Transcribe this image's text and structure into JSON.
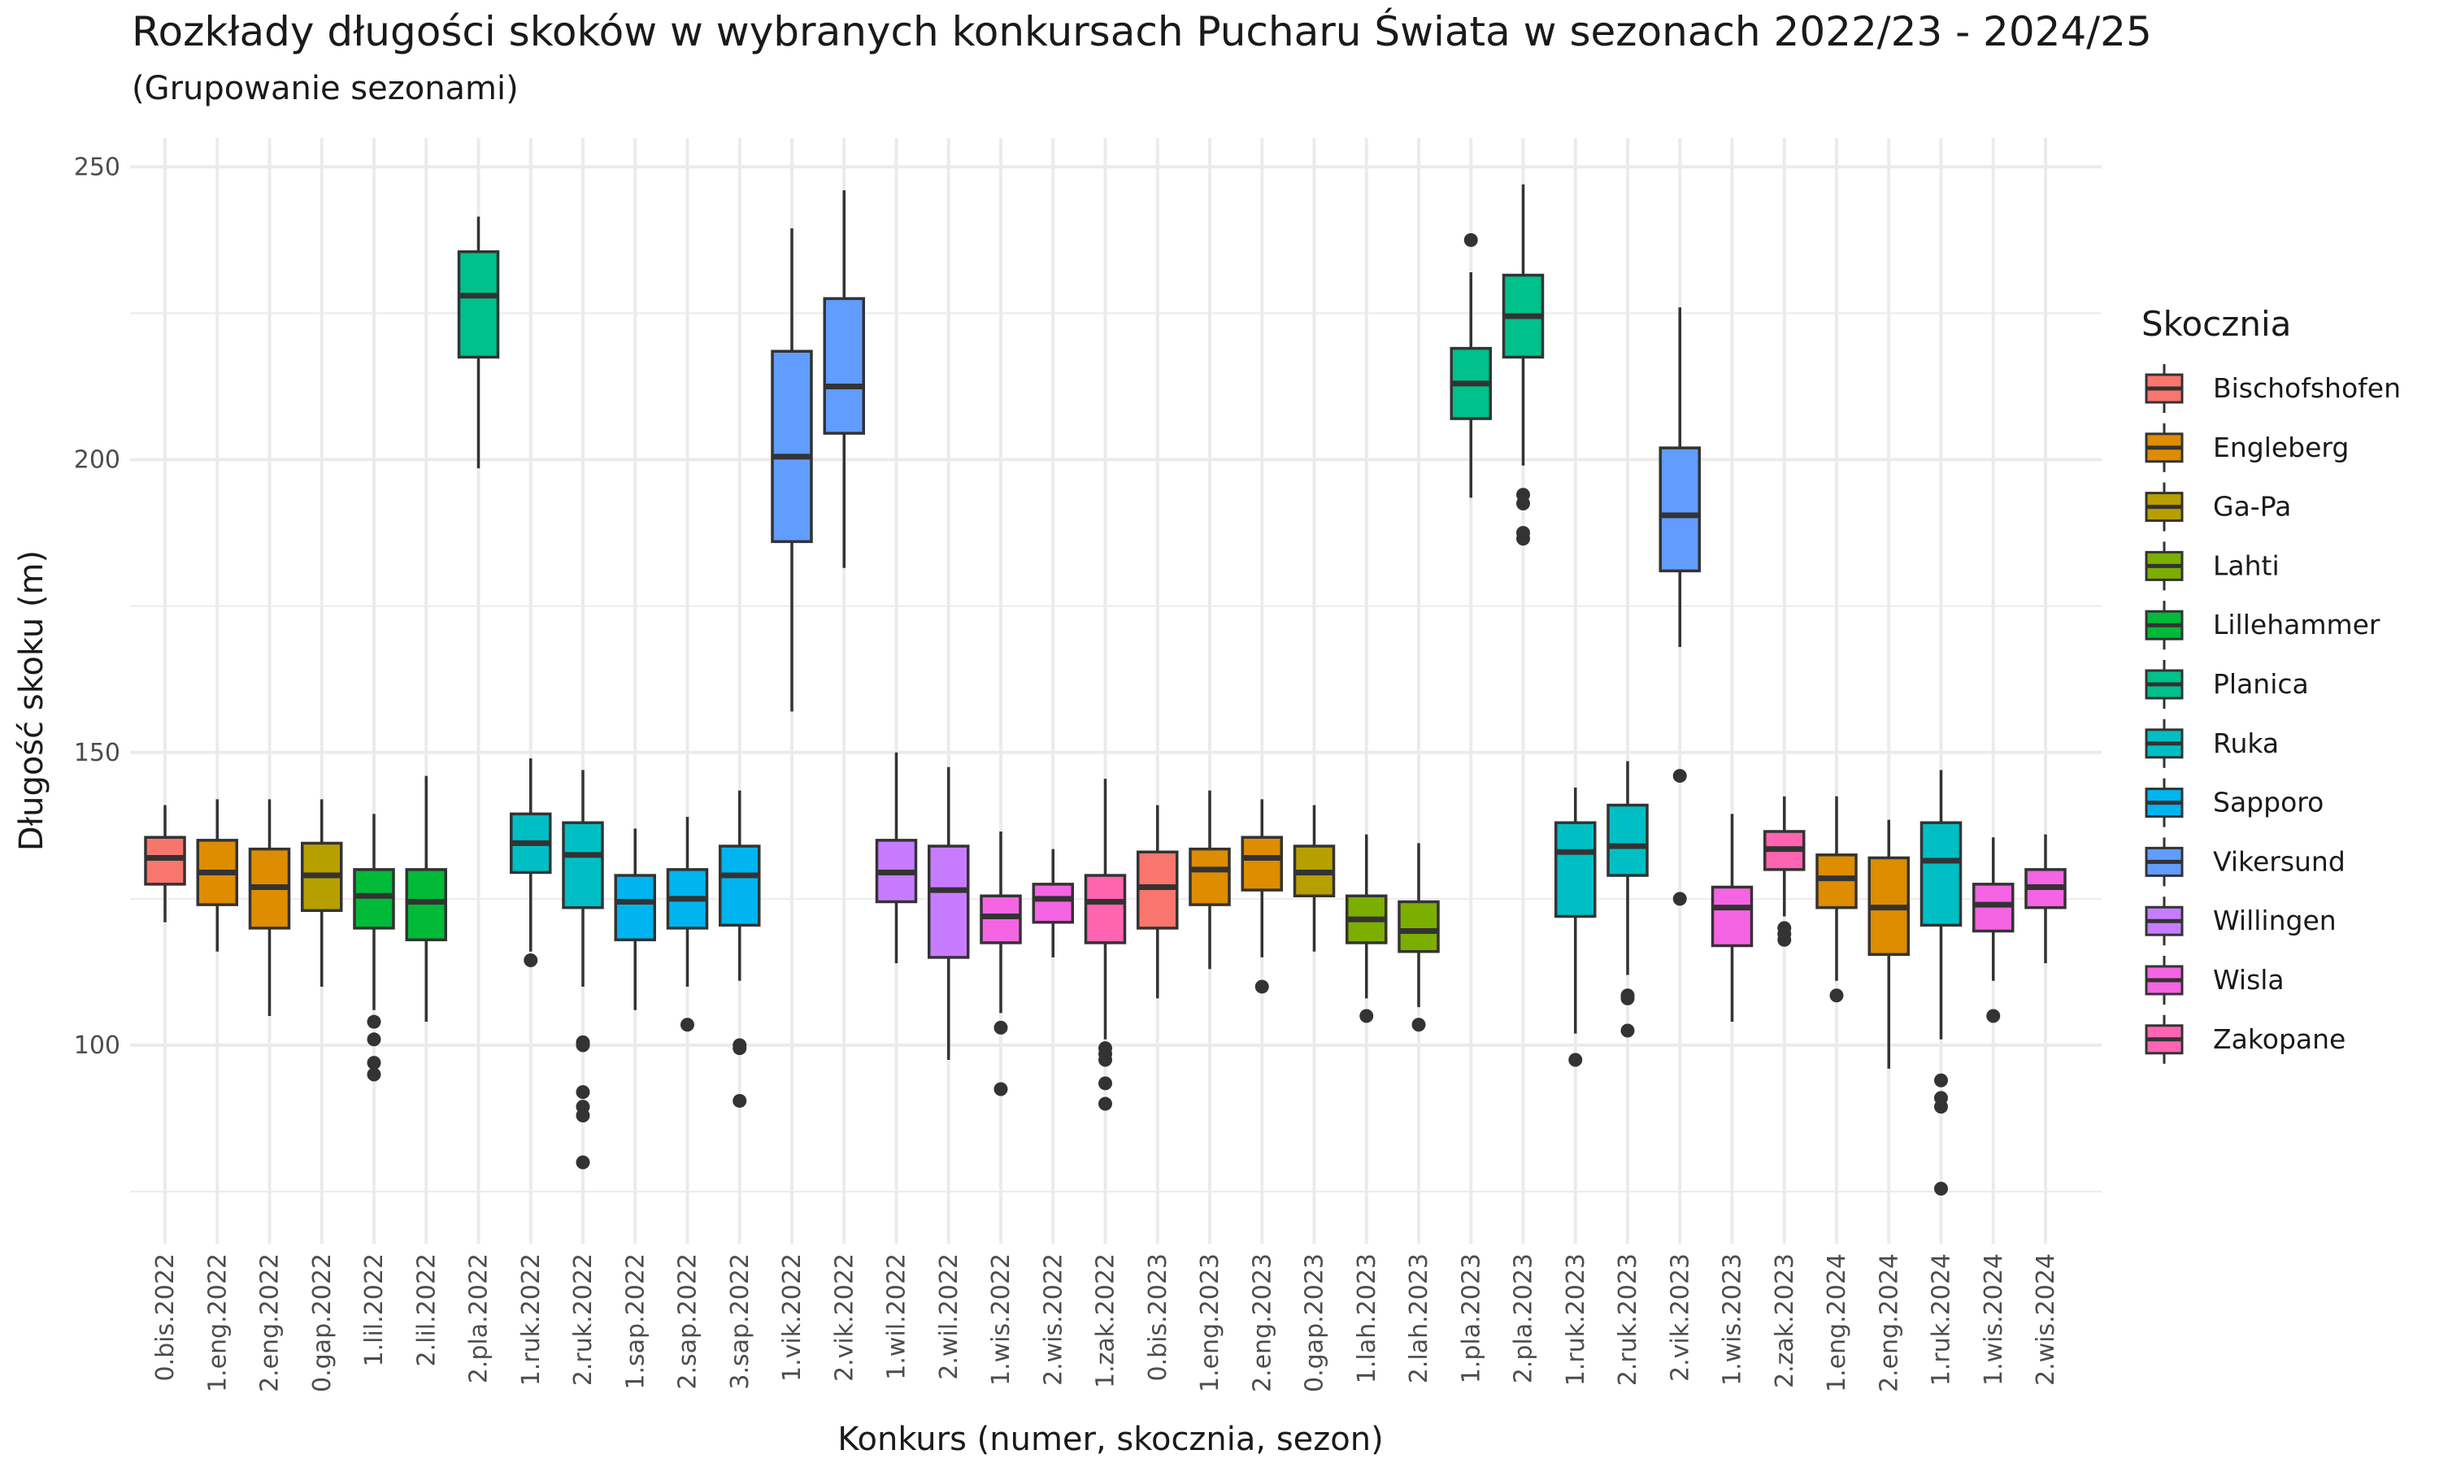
{
  "chart_data": {
    "type": "box",
    "title": "Rozkłady długości skoków w wybranych konkursach Pucharu Świata w sezonach 2022/23 - 2024/25",
    "subtitle": "(Grupowanie sezonami)",
    "xlabel": "Konkurs (numer, skocznia, sezon)",
    "ylabel": "Długość skoku (m)",
    "ylim": [
      72,
      255
    ],
    "yticks": [
      100,
      150,
      200,
      250
    ],
    "grid": true,
    "legend": {
      "title": "Skocznia",
      "position": "right",
      "entries": [
        {
          "name": "Bischofshofen",
          "color": "#F8766D"
        },
        {
          "name": "Engleberg",
          "color": "#DE8C00"
        },
        {
          "name": "Ga-Pa",
          "color": "#B79F00"
        },
        {
          "name": "Lahti",
          "color": "#7CAE00"
        },
        {
          "name": "Lillehammer",
          "color": "#00BA38"
        },
        {
          "name": "Planica",
          "color": "#00C08B"
        },
        {
          "name": "Ruka",
          "color": "#00BFC4"
        },
        {
          "name": "Sapporo",
          "color": "#00B4F0"
        },
        {
          "name": "Vikersund",
          "color": "#619CFF"
        },
        {
          "name": "Willingen",
          "color": "#C77CFF"
        },
        {
          "name": "Wisla",
          "color": "#F564E3"
        },
        {
          "name": "Zakopane",
          "color": "#FF64B0"
        }
      ]
    },
    "boxes": [
      {
        "label": "0.bis.2022",
        "hill": "Bischofshofen",
        "whisker_low": 121,
        "q1": 127.5,
        "median": 132,
        "q3": 135.5,
        "whisker_high": 141,
        "outliers": []
      },
      {
        "label": "1.eng.2022",
        "hill": "Engleberg",
        "whisker_low": 116,
        "q1": 124,
        "median": 129.5,
        "q3": 135,
        "whisker_high": 142,
        "outliers": []
      },
      {
        "label": "2.eng.2022",
        "hill": "Engleberg",
        "whisker_low": 105,
        "q1": 120,
        "median": 127,
        "q3": 133.5,
        "whisker_high": 142,
        "outliers": []
      },
      {
        "label": "0.gap.2022",
        "hill": "Ga-Pa",
        "whisker_low": 110,
        "q1": 123,
        "median": 129,
        "q3": 134.5,
        "whisker_high": 142,
        "outliers": []
      },
      {
        "label": "1.lil.2022",
        "hill": "Lillehammer",
        "whisker_low": 106,
        "q1": 120,
        "median": 125.5,
        "q3": 130,
        "whisker_high": 139.5,
        "outliers": [
          104,
          101,
          97,
          95
        ]
      },
      {
        "label": "2.lil.2022",
        "hill": "Lillehammer",
        "whisker_low": 104,
        "q1": 118,
        "median": 124.5,
        "q3": 130,
        "whisker_high": 146,
        "outliers": []
      },
      {
        "label": "2.pla.2022",
        "hill": "Planica",
        "whisker_low": 198.5,
        "q1": 217.5,
        "median": 228,
        "q3": 235.5,
        "whisker_high": 241.5,
        "outliers": []
      },
      {
        "label": "1.ruk.2022",
        "hill": "Ruka",
        "whisker_low": 116,
        "q1": 129.5,
        "median": 134.5,
        "q3": 139.5,
        "whisker_high": 149,
        "outliers": [
          114.5
        ]
      },
      {
        "label": "2.ruk.2022",
        "hill": "Ruka",
        "whisker_low": 110,
        "q1": 123.5,
        "median": 132.5,
        "q3": 138,
        "whisker_high": 147,
        "outliers": [
          100.5,
          100,
          92,
          89.5,
          88,
          80
        ]
      },
      {
        "label": "1.sap.2022",
        "hill": "Sapporo",
        "whisker_low": 106,
        "q1": 118,
        "median": 124.5,
        "q3": 129,
        "whisker_high": 137,
        "outliers": []
      },
      {
        "label": "2.sap.2022",
        "hill": "Sapporo",
        "whisker_low": 110,
        "q1": 120,
        "median": 125,
        "q3": 130,
        "whisker_high": 139,
        "outliers": [
          103.5
        ]
      },
      {
        "label": "3.sap.2022",
        "hill": "Sapporo",
        "whisker_low": 111,
        "q1": 120.5,
        "median": 129,
        "q3": 134,
        "whisker_high": 143.5,
        "outliers": [
          100,
          99.5,
          90.5
        ]
      },
      {
        "label": "1.vik.2022",
        "hill": "Vikersund",
        "whisker_low": 157,
        "q1": 186,
        "median": 200.5,
        "q3": 218.5,
        "whisker_high": 239.5,
        "outliers": []
      },
      {
        "label": "2.vik.2022",
        "hill": "Vikersund",
        "whisker_low": 181.5,
        "q1": 204.5,
        "median": 212.5,
        "q3": 227.5,
        "whisker_high": 246,
        "outliers": []
      },
      {
        "label": "1.wil.2022",
        "hill": "Willingen",
        "whisker_low": 114,
        "q1": 124.5,
        "median": 129.5,
        "q3": 135,
        "whisker_high": 150,
        "outliers": []
      },
      {
        "label": "2.wil.2022",
        "hill": "Willingen",
        "whisker_low": 97.5,
        "q1": 115,
        "median": 126.5,
        "q3": 134,
        "whisker_high": 147.5,
        "outliers": []
      },
      {
        "label": "1.wis.2022",
        "hill": "Wisla",
        "whisker_low": 105.5,
        "q1": 117.5,
        "median": 122,
        "q3": 125.5,
        "whisker_high": 136.5,
        "outliers": [
          103,
          92.5
        ]
      },
      {
        "label": "2.wis.2022",
        "hill": "Wisla",
        "whisker_low": 115,
        "q1": 121,
        "median": 125,
        "q3": 127.5,
        "whisker_high": 133.5,
        "outliers": []
      },
      {
        "label": "1.zak.2022",
        "hill": "Zakopane",
        "whisker_low": 101,
        "q1": 117.5,
        "median": 124.5,
        "q3": 129,
        "whisker_high": 145.5,
        "outliers": [
          99.5,
          98.5,
          97.5,
          93.5,
          90
        ]
      },
      {
        "label": "0.bis.2023",
        "hill": "Bischofshofen",
        "whisker_low": 108,
        "q1": 120,
        "median": 127,
        "q3": 133,
        "whisker_high": 141,
        "outliers": []
      },
      {
        "label": "1.eng.2023",
        "hill": "Engleberg",
        "whisker_low": 113,
        "q1": 124,
        "median": 130,
        "q3": 133.5,
        "whisker_high": 143.5,
        "outliers": []
      },
      {
        "label": "2.eng.2023",
        "hill": "Engleberg",
        "whisker_low": 115,
        "q1": 126.5,
        "median": 132,
        "q3": 135.5,
        "whisker_high": 142,
        "outliers": [
          110
        ]
      },
      {
        "label": "0.gap.2023",
        "hill": "Ga-Pa",
        "whisker_low": 116,
        "q1": 125.5,
        "median": 129.5,
        "q3": 134,
        "whisker_high": 141,
        "outliers": []
      },
      {
        "label": "1.lah.2023",
        "hill": "Lahti",
        "whisker_low": 108,
        "q1": 117.5,
        "median": 121.5,
        "q3": 125.5,
        "whisker_high": 136,
        "outliers": [
          105
        ]
      },
      {
        "label": "2.lah.2023",
        "hill": "Lahti",
        "whisker_low": 106.5,
        "q1": 116,
        "median": 119.5,
        "q3": 124.5,
        "whisker_high": 134.5,
        "outliers": [
          103.5
        ]
      },
      {
        "label": "1.pla.2023",
        "hill": "Planica",
        "whisker_low": 193.5,
        "q1": 207,
        "median": 213,
        "q3": 219,
        "whisker_high": 232,
        "outliers": [
          237.5
        ]
      },
      {
        "label": "2.pla.2023",
        "hill": "Planica",
        "whisker_low": 199,
        "q1": 217.5,
        "median": 224.5,
        "q3": 231.5,
        "whisker_high": 247,
        "outliers": [
          194,
          192.5,
          187.5,
          186.5
        ]
      },
      {
        "label": "1.ruk.2023",
        "hill": "Ruka",
        "whisker_low": 102,
        "q1": 122,
        "median": 133,
        "q3": 138,
        "whisker_high": 144,
        "outliers": [
          97.5
        ]
      },
      {
        "label": "2.ruk.2023",
        "hill": "Ruka",
        "whisker_low": 112,
        "q1": 129,
        "median": 134,
        "q3": 141,
        "whisker_high": 148.5,
        "outliers": [
          108.5,
          108,
          102.5
        ]
      },
      {
        "label": "2.vik.2023",
        "hill": "Vikersund",
        "whisker_low": 168,
        "q1": 181,
        "median": 190.5,
        "q3": 202,
        "whisker_high": 226,
        "outliers": [
          146,
          125
        ]
      },
      {
        "label": "1.wis.2023",
        "hill": "Wisla",
        "whisker_low": 104,
        "q1": 117,
        "median": 123.5,
        "q3": 127,
        "whisker_high": 139.5,
        "outliers": []
      },
      {
        "label": "2.zak.2023",
        "hill": "Zakopane",
        "whisker_low": 122,
        "q1": 130,
        "median": 133.5,
        "q3": 136.5,
        "whisker_high": 142.5,
        "outliers": [
          120,
          119,
          118
        ]
      },
      {
        "label": "1.eng.2024",
        "hill": "Engleberg",
        "whisker_low": 111,
        "q1": 123.5,
        "median": 128.5,
        "q3": 132.5,
        "whisker_high": 142.5,
        "outliers": [
          108.5
        ]
      },
      {
        "label": "2.eng.2024",
        "hill": "Engleberg",
        "whisker_low": 96,
        "q1": 115.5,
        "median": 123.5,
        "q3": 132,
        "whisker_high": 138.5,
        "outliers": []
      },
      {
        "label": "1.ruk.2024",
        "hill": "Ruka",
        "whisker_low": 101,
        "q1": 120.5,
        "median": 131.5,
        "q3": 138,
        "whisker_high": 147,
        "outliers": [
          94,
          91,
          89.5,
          75.5
        ]
      },
      {
        "label": "1.wis.2024",
        "hill": "Wisla",
        "whisker_low": 111,
        "q1": 119.5,
        "median": 124,
        "q3": 127.5,
        "whisker_high": 135.5,
        "outliers": [
          105
        ]
      },
      {
        "label": "2.wis.2024",
        "hill": "Wisla",
        "whisker_low": 114,
        "q1": 123.5,
        "median": 127,
        "q3": 130,
        "whisker_high": 136,
        "outliers": []
      }
    ]
  }
}
